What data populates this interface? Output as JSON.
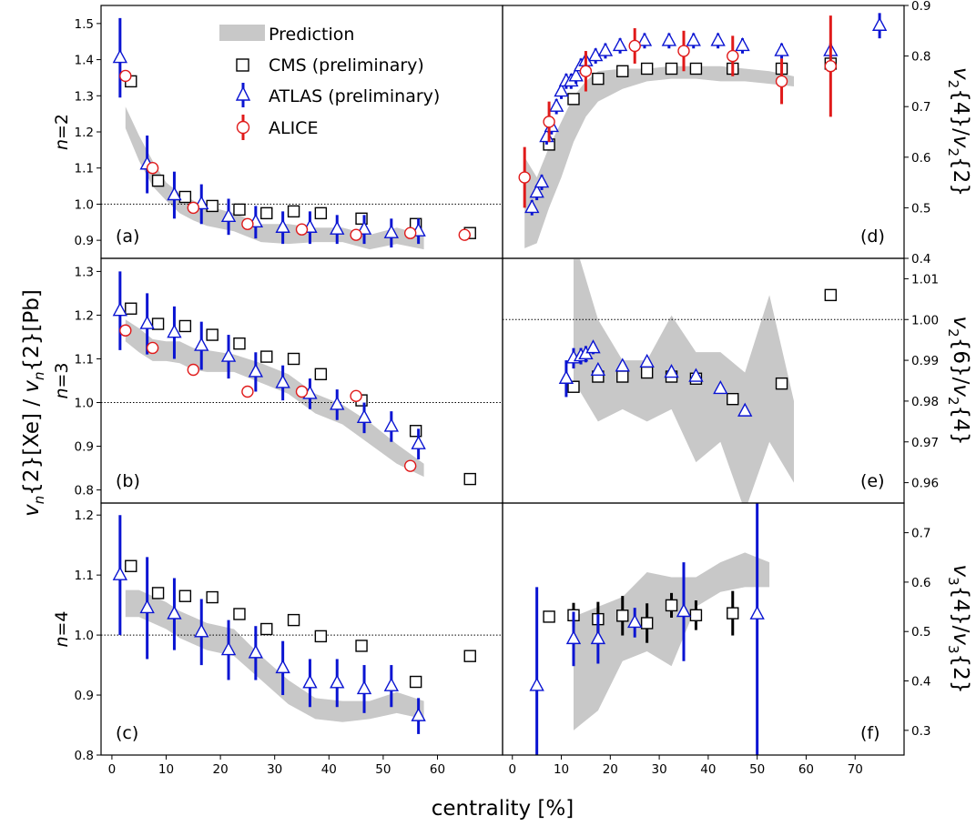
{
  "figure": {
    "xlabel": "centrality [%]",
    "ylabel_left": "v_n{2}[Xe] / v_n{2}[Pb]",
    "legend": [
      "Prediction",
      "CMS (preliminary)",
      "ATLAS (preliminary)",
      "ALICE"
    ],
    "colors": {
      "prediction": "#c8c8c8",
      "cms": "#000000",
      "atlas": "#0a14d2",
      "alice": "#e01a1a"
    }
  },
  "chart_data": [
    {
      "panel": "(a)",
      "type": "scatter",
      "row_label": "n=2",
      "ylabel": "",
      "xlim": [
        -2,
        72
      ],
      "ylim": [
        0.85,
        1.55
      ],
      "xticks": [
        0,
        10,
        20,
        30,
        40,
        50,
        60
      ],
      "yticks": [
        "0.9",
        "1.0",
        "1.1",
        "1.2",
        "1.3",
        "1.4",
        "1.5"
      ],
      "reference_line": 1.0,
      "prediction_band": {
        "x": [
          2.5,
          5,
          7.5,
          10,
          12.5,
          15,
          17.5,
          22.5,
          27.5,
          32.5,
          37.5,
          42.5,
          47.5,
          52.5,
          57.5
        ],
        "low": [
          1.21,
          1.12,
          1.05,
          1.01,
          0.975,
          0.955,
          0.94,
          0.925,
          0.895,
          0.89,
          0.895,
          0.895,
          0.875,
          0.89,
          0.875
        ],
        "high": [
          1.27,
          1.19,
          1.12,
          1.06,
          1.03,
          1.01,
          0.995,
          0.975,
          0.945,
          0.945,
          0.935,
          0.935,
          0.915,
          0.935,
          0.915
        ]
      },
      "series": [
        {
          "name": "CMS (preliminary)",
          "marker": "square",
          "x": [
            3.5,
            8.5,
            13.5,
            18.5,
            23.5,
            28.5,
            33.5,
            38.5,
            46,
            56,
            66
          ],
          "y": [
            1.34,
            1.065,
            1.02,
            0.995,
            0.985,
            0.975,
            0.98,
            0.975,
            0.96,
            0.945,
            0.92
          ],
          "err": [
            0.005,
            0.005,
            0.005,
            0.005,
            0.005,
            0.005,
            0.005,
            0.005,
            0.005,
            0.005,
            0.005
          ]
        },
        {
          "name": "ATLAS (preliminary)",
          "marker": "triangle",
          "x": [
            1.5,
            6.5,
            11.5,
            16.5,
            21.5,
            26.5,
            31.5,
            36.5,
            41.5,
            46.5,
            51.5,
            56.5
          ],
          "y": [
            1.405,
            1.11,
            1.025,
            1.0,
            0.965,
            0.95,
            0.935,
            0.935,
            0.93,
            0.93,
            0.92,
            0.925
          ],
          "err": [
            0.11,
            0.08,
            0.065,
            0.055,
            0.05,
            0.045,
            0.045,
            0.045,
            0.04,
            0.04,
            0.04,
            0.035
          ]
        },
        {
          "name": "ALICE",
          "marker": "circle",
          "x": [
            2.5,
            7.5,
            15,
            25,
            35,
            45,
            55,
            65
          ],
          "y": [
            1.355,
            1.1,
            0.99,
            0.945,
            0.93,
            0.915,
            0.92,
            0.915
          ],
          "err": [
            0.008,
            0.008,
            0.008,
            0.008,
            0.008,
            0.008,
            0.008,
            0.008
          ]
        }
      ]
    },
    {
      "panel": "(b)",
      "type": "scatter",
      "row_label": "n=3",
      "ylabel": "",
      "xlim": [
        -2,
        72
      ],
      "ylim": [
        0.77,
        1.33
      ],
      "xticks": [
        0,
        10,
        20,
        30,
        40,
        50,
        60
      ],
      "yticks": [
        "0.8",
        "0.9",
        "1.0",
        "1.1",
        "1.2",
        "1.3"
      ],
      "reference_line": 1.0,
      "prediction_band": {
        "x": [
          2.5,
          5,
          7.5,
          10,
          12.5,
          15,
          17.5,
          22.5,
          27.5,
          32.5,
          37.5,
          42.5,
          47.5,
          52.5,
          57.5
        ],
        "low": [
          1.14,
          1.115,
          1.095,
          1.095,
          1.09,
          1.075,
          1.07,
          1.07,
          1.045,
          1.02,
          0.975,
          0.95,
          0.905,
          0.86,
          0.83
        ],
        "high": [
          1.19,
          1.17,
          1.145,
          1.14,
          1.14,
          1.125,
          1.12,
          1.11,
          1.09,
          1.065,
          1.02,
          0.995,
          0.955,
          0.905,
          0.86
        ]
      },
      "series": [
        {
          "name": "CMS (preliminary)",
          "marker": "square",
          "x": [
            3.5,
            8.5,
            13.5,
            18.5,
            23.5,
            28.5,
            33.5,
            38.5,
            46,
            56,
            66
          ],
          "y": [
            1.215,
            1.18,
            1.175,
            1.155,
            1.135,
            1.105,
            1.1,
            1.065,
            1.005,
            0.935,
            0.825
          ],
          "err": [
            0.005,
            0.005,
            0.005,
            0.005,
            0.005,
            0.005,
            0.005,
            0.005,
            0.005,
            0.005,
            0.005
          ]
        },
        {
          "name": "ATLAS (preliminary)",
          "marker": "triangle",
          "x": [
            1.5,
            6.5,
            11.5,
            16.5,
            21.5,
            26.5,
            31.5,
            36.5,
            41.5,
            46.5,
            51.5,
            56.5
          ],
          "y": [
            1.21,
            1.18,
            1.16,
            1.13,
            1.105,
            1.07,
            1.045,
            1.02,
            0.995,
            0.965,
            0.945,
            0.905
          ],
          "err": [
            0.09,
            0.07,
            0.06,
            0.055,
            0.05,
            0.045,
            0.04,
            0.035,
            0.035,
            0.035,
            0.035,
            0.035
          ]
        },
        {
          "name": "ALICE",
          "marker": "circle",
          "x": [
            2.5,
            7.5,
            15,
            25,
            35,
            45,
            55
          ],
          "y": [
            1.165,
            1.125,
            1.075,
            1.025,
            1.025,
            1.015,
            0.855
          ],
          "err": [
            0.008,
            0.008,
            0.008,
            0.008,
            0.008,
            0.008,
            0.008
          ]
        }
      ]
    },
    {
      "panel": "(c)",
      "type": "scatter",
      "row_label": "n=4",
      "ylabel": "",
      "xlim": [
        -2,
        72
      ],
      "ylim": [
        0.8,
        1.22
      ],
      "xticks": [
        0,
        10,
        20,
        30,
        40,
        50,
        60
      ],
      "yticks": [
        "0.8",
        "0.9",
        "1.0",
        "1.1",
        "1.2"
      ],
      "reference_line": 1.0,
      "prediction_band": {
        "x": [
          2.5,
          5,
          7.5,
          10,
          12.5,
          15,
          17.5,
          22.5,
          27.5,
          32.5,
          37.5,
          42.5,
          47.5,
          52.5,
          57.5
        ],
        "low": [
          1.03,
          1.03,
          1.02,
          1.01,
          0.995,
          0.985,
          0.975,
          0.965,
          0.925,
          0.885,
          0.86,
          0.855,
          0.86,
          0.87,
          0.86
        ],
        "high": [
          1.075,
          1.075,
          1.065,
          1.055,
          1.04,
          1.03,
          1.02,
          1.01,
          0.965,
          0.925,
          0.895,
          0.89,
          0.89,
          0.905,
          0.89
        ]
      },
      "series": [
        {
          "name": "CMS (preliminary)",
          "marker": "square",
          "x": [
            3.5,
            8.5,
            13.5,
            18.5,
            23.5,
            28.5,
            33.5,
            38.5,
            46,
            56,
            66
          ],
          "y": [
            1.115,
            1.07,
            1.065,
            1.063,
            1.035,
            1.01,
            1.025,
            0.998,
            0.982,
            0.922,
            0.965
          ],
          "err": [
            0.005,
            0.005,
            0.005,
            0.005,
            0.005,
            0.005,
            0.005,
            0.005,
            0.005,
            0.005,
            0.005
          ]
        },
        {
          "name": "ATLAS (preliminary)",
          "marker": "triangle",
          "x": [
            1.5,
            6.5,
            11.5,
            16.5,
            21.5,
            26.5,
            31.5,
            36.5,
            41.5,
            46.5,
            51.5,
            56.5
          ],
          "y": [
            1.1,
            1.045,
            1.035,
            1.005,
            0.975,
            0.97,
            0.945,
            0.92,
            0.92,
            0.91,
            0.915,
            0.865
          ],
          "err": [
            0.1,
            0.085,
            0.06,
            0.055,
            0.05,
            0.045,
            0.045,
            0.04,
            0.04,
            0.04,
            0.035,
            0.03
          ]
        }
      ]
    },
    {
      "panel": "(d)",
      "type": "scatter",
      "ylabel": "v_2{4}/v_2{2}",
      "xlim": [
        -2,
        80
      ],
      "ylim": [
        0.4,
        0.9
      ],
      "xticks": [
        0,
        10,
        20,
        30,
        40,
        50,
        60,
        70
      ],
      "yticks": [
        "0.4",
        "0.5",
        "0.6",
        "0.7",
        "0.8",
        "0.9"
      ],
      "prediction_band": {
        "x": [
          2.5,
          5,
          7.5,
          10,
          12.5,
          15,
          17.5,
          22.5,
          27.5,
          32.5,
          37.5,
          42.5,
          47.5,
          52.5,
          57.5
        ],
        "low": [
          0.42,
          0.43,
          0.5,
          0.56,
          0.63,
          0.68,
          0.71,
          0.735,
          0.75,
          0.755,
          0.755,
          0.75,
          0.75,
          0.745,
          0.74
        ],
        "high": [
          0.6,
          0.56,
          0.62,
          0.67,
          0.72,
          0.75,
          0.77,
          0.775,
          0.775,
          0.78,
          0.78,
          0.78,
          0.775,
          0.77,
          0.76
        ]
      },
      "series": [
        {
          "name": "CMS (preliminary)",
          "marker": "square",
          "x": [
            7.5,
            12.5,
            17.5,
            22.5,
            27.5,
            32.5,
            37.5,
            45,
            55,
            65
          ],
          "y": [
            0.625,
            0.715,
            0.755,
            0.77,
            0.775,
            0.775,
            0.775,
            0.775,
            0.775,
            0.785
          ],
          "err": [
            0.005,
            0.005,
            0.005,
            0.005,
            0.005,
            0.005,
            0.005,
            0.005,
            0.005,
            0.005
          ]
        },
        {
          "name": "ATLAS (preliminary)",
          "marker": "triangle",
          "x": [
            4,
            5,
            6,
            7,
            8,
            9,
            10,
            11,
            12,
            13,
            14,
            15,
            17,
            19,
            22,
            27,
            32,
            37,
            42,
            47,
            55,
            65,
            75
          ],
          "y": [
            0.5,
            0.53,
            0.55,
            0.64,
            0.66,
            0.7,
            0.73,
            0.75,
            0.75,
            0.76,
            0.78,
            0.79,
            0.8,
            0.81,
            0.82,
            0.83,
            0.83,
            0.83,
            0.83,
            0.82,
            0.81,
            0.81,
            0.86
          ],
          "err": [
            0.015,
            0.015,
            0.015,
            0.015,
            0.015,
            0.015,
            0.015,
            0.015,
            0.015,
            0.015,
            0.015,
            0.015,
            0.015,
            0.015,
            0.015,
            0.015,
            0.015,
            0.015,
            0.015,
            0.015,
            0.015,
            0.015,
            0.025
          ]
        },
        {
          "name": "ALICE",
          "marker": "circle",
          "x": [
            2.5,
            7.5,
            15,
            25,
            35,
            45,
            55,
            65
          ],
          "y": [
            0.56,
            0.67,
            0.77,
            0.82,
            0.81,
            0.8,
            0.75,
            0.78
          ],
          "err": [
            0.06,
            0.04,
            0.04,
            0.035,
            0.04,
            0.04,
            0.045,
            0.1
          ]
        }
      ]
    },
    {
      "panel": "(e)",
      "type": "scatter",
      "ylabel": "v_2{6}/v_2{4}",
      "xlim": [
        -2,
        80
      ],
      "ylim": [
        0.955,
        1.015
      ],
      "xticks": [
        0,
        10,
        20,
        30,
        40,
        50,
        60,
        70
      ],
      "yticks": [
        "0.96",
        "0.97",
        "0.98",
        "0.99",
        "1.00",
        "1.01"
      ],
      "reference_line": 1.0,
      "prediction_band": {
        "x": [
          12.5,
          17.5,
          22.5,
          27.5,
          32.5,
          37.5,
          42.5,
          47.5,
          52.5,
          57.5
        ],
        "low": [
          0.985,
          0.975,
          0.978,
          0.975,
          0.978,
          0.965,
          0.97,
          0.953,
          0.97,
          0.96
        ],
        "high": [
          1.02,
          1.0,
          0.99,
          0.99,
          1.001,
          0.992,
          0.992,
          0.987,
          1.006,
          0.98
        ]
      },
      "series": [
        {
          "name": "CMS (preliminary)",
          "marker": "square",
          "x": [
            12.5,
            17.5,
            22.5,
            27.5,
            32.5,
            37.5,
            45,
            55,
            65
          ],
          "y": [
            0.9835,
            0.986,
            0.986,
            0.987,
            0.986,
            0.9855,
            0.9805,
            0.9843,
            1.006
          ],
          "err": [
            0.0004,
            0.0004,
            0.0004,
            0.0004,
            0.0004,
            0.0004,
            0.0004,
            0.0004,
            0.0004
          ]
        },
        {
          "name": "ATLAS (preliminary)",
          "marker": "triangle",
          "x": [
            11,
            12.5,
            14,
            15,
            16.5,
            17.5,
            22.5,
            27.5,
            32.5,
            37.5,
            42.5,
            47.5
          ],
          "y": [
            0.9855,
            0.9905,
            0.991,
            0.9915,
            0.993,
            0.9875,
            0.9885,
            0.9895,
            0.987,
            0.986,
            0.983,
            0.9775
          ],
          "err": [
            0.0045,
            0.0025,
            0.002,
            0.002,
            0.0015,
            0.0008,
            0.0008,
            0.0008,
            0.0008,
            0.0008,
            0.0008,
            0.0008
          ]
        }
      ]
    },
    {
      "panel": "(f)",
      "type": "scatter",
      "ylabel": "v_3{4}/v_3{2}",
      "xlim": [
        -2,
        80
      ],
      "ylim": [
        0.25,
        0.76
      ],
      "xticks": [
        0,
        10,
        20,
        30,
        40,
        50,
        60,
        70
      ],
      "yticks": [
        "0.3",
        "0.4",
        "0.5",
        "0.6",
        "0.7"
      ],
      "prediction_band": {
        "x": [
          12.5,
          17.5,
          22.5,
          27.5,
          32.5,
          37.5,
          42.5,
          47.5,
          52.5
        ],
        "low": [
          0.3,
          0.34,
          0.44,
          0.46,
          0.43,
          0.55,
          0.58,
          0.59,
          0.59
        ],
        "high": [
          0.53,
          0.55,
          0.57,
          0.62,
          0.61,
          0.61,
          0.64,
          0.66,
          0.64
        ]
      },
      "series": [
        {
          "name": "CMS (preliminary)",
          "marker": "square",
          "x": [
            7.5,
            12.5,
            17.5,
            22.5,
            27.5,
            32.5,
            37.5,
            45
          ],
          "y": [
            0.53,
            0.533,
            0.525,
            0.532,
            0.517,
            0.553,
            0.533,
            0.537
          ],
          "err": [
            0.01,
            0.025,
            0.035,
            0.04,
            0.04,
            0.025,
            0.03,
            0.045
          ]
        },
        {
          "name": "ATLAS (preliminary)",
          "marker": "triangle",
          "x": [
            5,
            12.5,
            17.5,
            25,
            35,
            50
          ],
          "y": [
            0.39,
            0.485,
            0.485,
            0.518,
            0.54,
            0.535
          ],
          "err": [
            0.2,
            0.055,
            0.05,
            0.03,
            0.1,
            0.33
          ]
        }
      ]
    }
  ]
}
